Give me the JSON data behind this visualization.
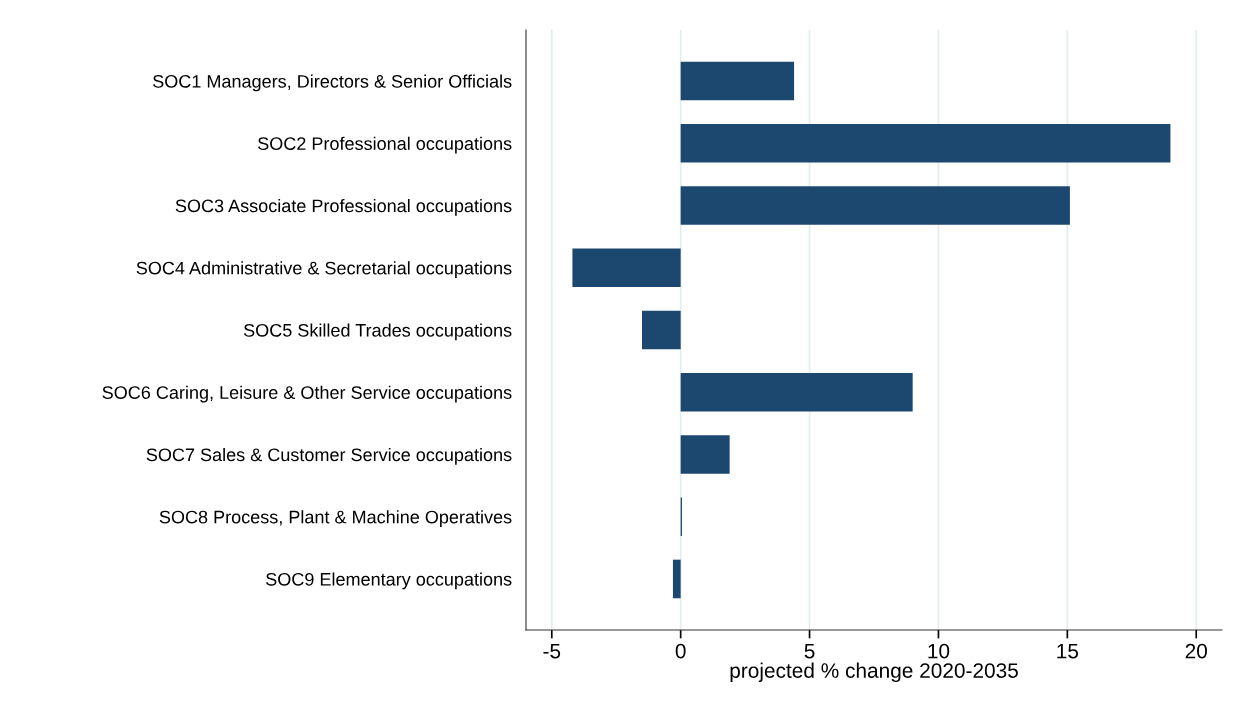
{
  "chart_data": {
    "type": "bar",
    "orientation": "horizontal",
    "xlabel": "projected % change 2020-2035",
    "categories": [
      "SOC1 Managers, Directors & Senior Officials",
      "SOC2 Professional occupations",
      "SOC3 Associate Professional occupations",
      "SOC4 Administrative & Secretarial occupations",
      "SOC5 Skilled Trades occupations",
      "SOC6 Caring, Leisure & Other Service occupations",
      "SOC7 Sales & Customer Service occupations",
      "SOC8 Process, Plant & Machine Operatives",
      "SOC9 Elementary occupations"
    ],
    "values": [
      4.4,
      19.0,
      15.1,
      -4.2,
      -1.5,
      9.0,
      1.9,
      0.05,
      -0.3
    ],
    "color": "#1c4870",
    "xlim": [
      -6,
      21
    ],
    "xticks": [
      -5,
      0,
      5,
      10,
      15,
      20
    ],
    "grid": "x",
    "legend": false
  }
}
